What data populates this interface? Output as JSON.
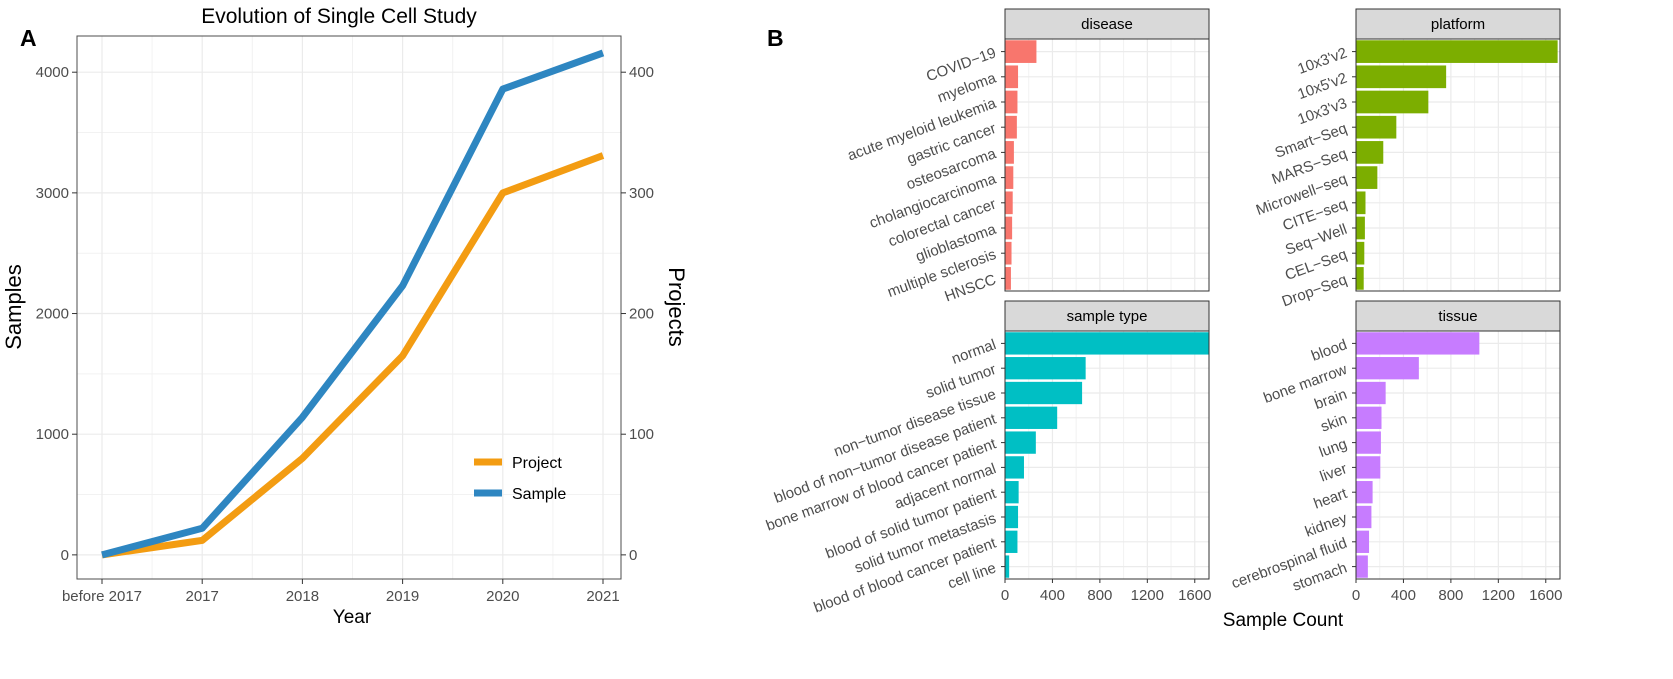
{
  "panel_labels": [
    "A",
    "B"
  ],
  "chart_data": [
    {
      "type": "line",
      "title": "Evolution of Single Cell Study",
      "xlabel": "Year",
      "ylabel": "Samples",
      "y2label": "Projects",
      "categories": [
        "before 2017",
        "2017",
        "2018",
        "2019",
        "2020",
        "2021"
      ],
      "ylim": [
        -200,
        4300
      ],
      "yticks": [
        0,
        1000,
        2000,
        3000,
        4000
      ],
      "y2lim": [
        -20,
        430
      ],
      "y2ticks": [
        0,
        100,
        200,
        300,
        400
      ],
      "series": [
        {
          "name": "Project",
          "axis": "right",
          "color": "#F39C12",
          "values": [
            0,
            12,
            80,
            165,
            300,
            331
          ]
        },
        {
          "name": "Sample",
          "axis": "left",
          "color": "#2E86C1",
          "values": [
            0,
            220,
            1140,
            2230,
            3860,
            4160
          ]
        }
      ],
      "legend": {
        "position": "bottom-right",
        "order": [
          "Project",
          "Sample"
        ]
      },
      "grid": true,
      "ylabel_color": "#2E86C1",
      "y2label_color": "#F39C12"
    },
    {
      "type": "bar",
      "orientation": "horizontal",
      "xlabel": "Sample Count",
      "xlim": [
        0,
        1720
      ],
      "xticks": [
        0,
        400,
        800,
        1200,
        1600
      ],
      "grid": true,
      "facets": [
        {
          "strip": "disease",
          "color": "#F8766D",
          "categories": [
            "COVID−19",
            "myeloma",
            "acute myeloid leukemia",
            "gastric cancer",
            "osteosarcoma",
            "cholangiocarcinoma",
            "colorectal cancer",
            "glioblastoma",
            "multiple sclerosis",
            "HNSCC"
          ],
          "values": [
            265,
            110,
            105,
            100,
            75,
            70,
            65,
            60,
            55,
            50
          ]
        },
        {
          "strip": "platform",
          "color": "#7CAE00",
          "categories": [
            "10x3'v2",
            "10x5'v2",
            "10x3'v3",
            "Smart−Seq",
            "MARS−Seq",
            "Microwell−seq",
            "CITE−seq",
            "Seq−Well",
            "CEL−Seq",
            "Drop−Seq"
          ],
          "values": [
            1700,
            760,
            610,
            340,
            230,
            180,
            80,
            75,
            70,
            65
          ]
        },
        {
          "strip": "sample type",
          "color": "#00BFC4",
          "categories": [
            "normal",
            "solid tumor",
            "non−tumor disease tissue",
            "blood of non−tumor disease patient",
            "bone marrow of blood cancer patient",
            "adjacent normal",
            "blood of solid tumor patient",
            "solid tumor metastasis",
            "blood of blood cancer patient",
            "cell line"
          ],
          "values": [
            1720,
            680,
            650,
            440,
            260,
            160,
            115,
            110,
            105,
            35
          ]
        },
        {
          "strip": "tissue",
          "color": "#C77CFF",
          "categories": [
            "blood",
            "bone marrow",
            "brain",
            "skin",
            "lung",
            "liver",
            "heart",
            "kidney",
            "cerebrospinal fluid",
            "stomach"
          ],
          "values": [
            1040,
            530,
            250,
            215,
            210,
            205,
            140,
            130,
            110,
            100
          ]
        }
      ]
    }
  ]
}
